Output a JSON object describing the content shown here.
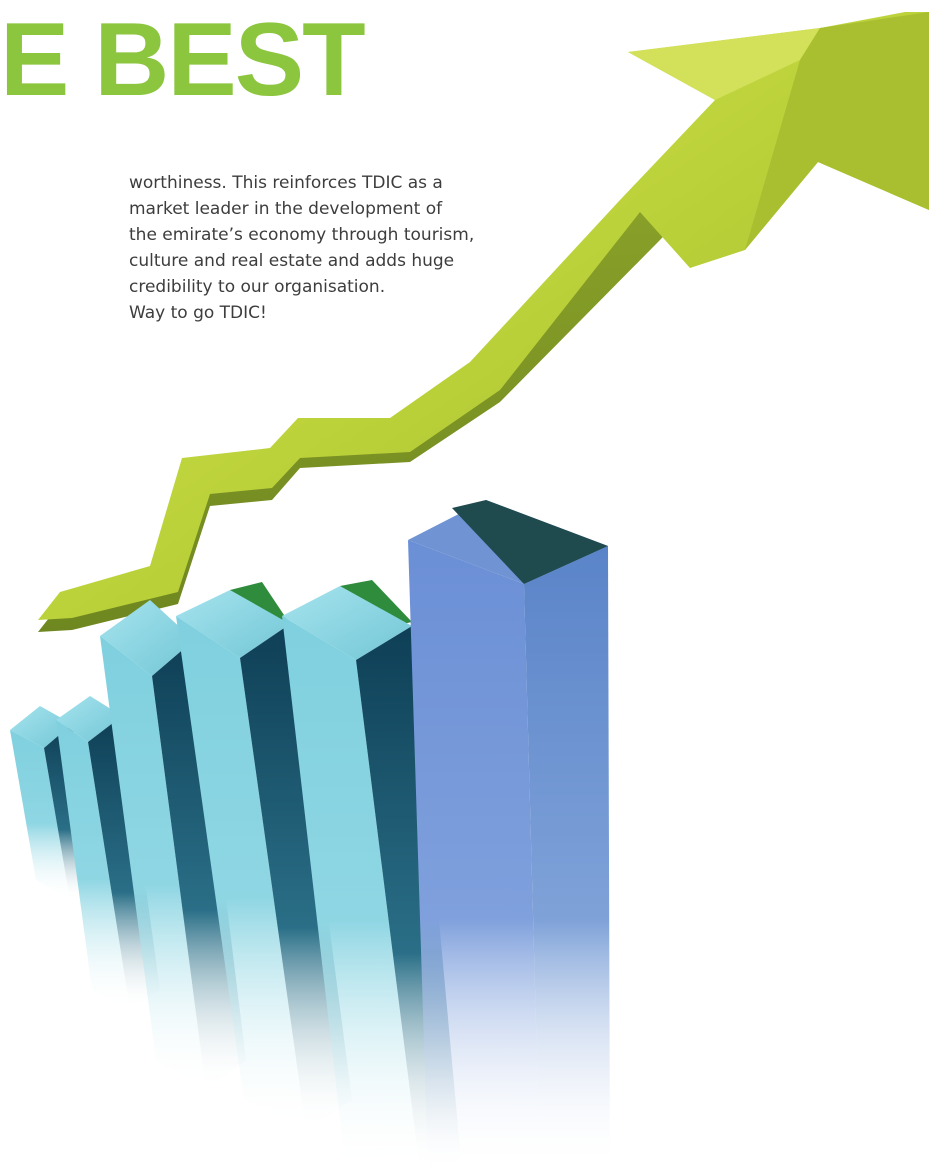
{
  "headline": "E BEST",
  "body_lines": [
    "worthiness. This reinforces TDIC as a",
    "market leader in the development of",
    "the emirate’s economy through tourism,",
    "culture and real estate and adds huge",
    "credibility to our organisation.",
    "Way to go TDIC!"
  ],
  "illustration": {
    "type": "rising-bar-chart-with-arrow",
    "bar_count": 6,
    "colors": {
      "headline": "#8cc63f",
      "arrow": "#bcd23a",
      "bars": "#7fd0df",
      "tallest_bar": "#6b8fd6",
      "bar_tops": "#2f8c3c"
    }
  }
}
